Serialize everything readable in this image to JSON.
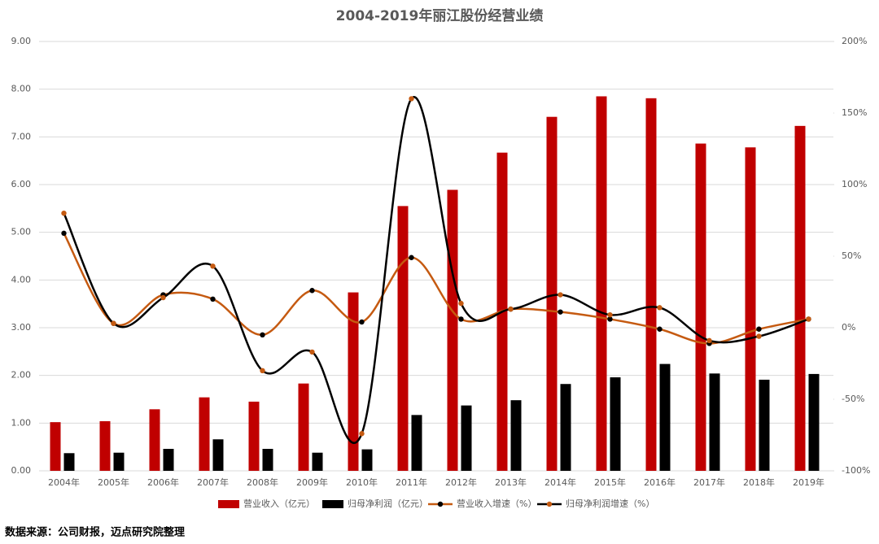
{
  "chart_data": {
    "type": "bar-line-combo",
    "title": "2004-2019年丽江股份经营业绩",
    "categories": [
      "2004年",
      "2005年",
      "2006年",
      "2007年",
      "2008年",
      "2009年",
      "2010年",
      "2011年",
      "2012年",
      "2013年",
      "2014年",
      "2015年",
      "2016年",
      "2017年",
      "2018年",
      "2019年"
    ],
    "series": [
      {
        "name": "营业收入（亿元）",
        "type": "bar",
        "color": "#c00000",
        "values": [
          1.02,
          1.04,
          1.29,
          1.54,
          1.45,
          1.83,
          3.74,
          5.55,
          5.89,
          6.67,
          7.42,
          7.85,
          7.81,
          6.86,
          6.78,
          7.23
        ]
      },
      {
        "name": "归母净利润（亿元）",
        "type": "bar",
        "color": "#000000",
        "values": [
          0.37,
          0.38,
          0.46,
          0.66,
          0.46,
          0.38,
          0.45,
          1.17,
          1.37,
          1.48,
          1.82,
          1.96,
          2.24,
          2.04,
          1.91,
          2.03
        ]
      },
      {
        "name": "营业收入增速（%）",
        "type": "line",
        "axis": "y2",
        "color": "#c55a11",
        "marker_color": "#000000",
        "values": [
          66,
          3,
          23,
          20,
          -5,
          26,
          4,
          49,
          6,
          13,
          11,
          6,
          -1,
          -11,
          -1,
          6
        ]
      },
      {
        "name": "归母净利润增速（%）",
        "type": "line",
        "axis": "y2",
        "color": "#000000",
        "marker_color": "#c55a11",
        "values": [
          80,
          3,
          21,
          43,
          -30,
          -17,
          -74,
          160,
          17,
          13,
          23,
          9,
          14,
          -9,
          -6,
          6
        ]
      }
    ],
    "ylim": [
      0,
      9
    ],
    "yticks": [
      {
        "value": 0,
        "label": "0.00"
      },
      {
        "value": 1,
        "label": "1.00"
      },
      {
        "value": 2,
        "label": "2.00"
      },
      {
        "value": 3,
        "label": "3.00"
      },
      {
        "value": 4,
        "label": "4.00"
      },
      {
        "value": 5,
        "label": "5.00"
      },
      {
        "value": 6,
        "label": "6.00"
      },
      {
        "value": 7,
        "label": "7.00"
      },
      {
        "value": 8,
        "label": "8.00"
      },
      {
        "value": 9,
        "label": "9.00"
      }
    ],
    "y2lim": [
      -100,
      200
    ],
    "y2ticks": [
      {
        "value": -100,
        "label": "-100%"
      },
      {
        "value": -50,
        "label": "-50%"
      },
      {
        "value": 0,
        "label": "0%"
      },
      {
        "value": 50,
        "label": "50%"
      },
      {
        "value": 100,
        "label": "100%"
      },
      {
        "value": 150,
        "label": "150%"
      },
      {
        "value": 200,
        "label": "200%"
      }
    ],
    "grid": true,
    "legend": "bottom",
    "source": "数据来源：公司财报，迈点研究院整理"
  }
}
